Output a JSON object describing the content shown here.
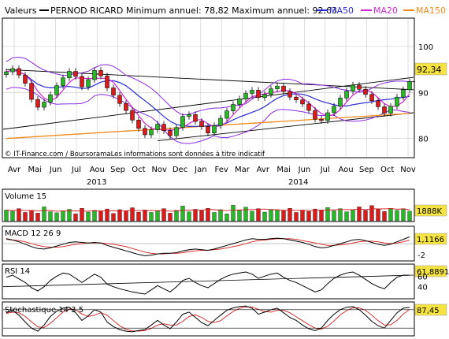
{
  "header": {
    "label_valeurs": "Valeurs",
    "security": "PERNOD RICARD",
    "stats": "Minimum annuel: 78,82 Maximum annuel: 92,63",
    "ma50": "MA50",
    "ma20": "MA20",
    "ma150": "MA150"
  },
  "colors": {
    "up": "#2bb52b",
    "down": "#d61c1c",
    "ma50": "#2b2bd6",
    "ma20": "#d22ad2",
    "ma150": "#f28c1e",
    "bollinger": "#8a2be2",
    "grid": "#c8c8c8",
    "last_price_bg": "#f5e342"
  },
  "footer_note": "© IT-Finance.com / BoursoramaLes informations sont données à titre indicatif",
  "chart_data": [
    {
      "type": "candlestick",
      "title": "PERNOD RICARD",
      "months": [
        "Avr",
        "Mai",
        "Jun",
        "Jul",
        "Aou",
        "Sep",
        "Oct",
        "Nov",
        "Dec",
        "Jan",
        "Fev",
        "Mar",
        "Avr",
        "Mai",
        "Jun",
        "Jul",
        "Aou",
        "Sep",
        "Oct",
        "Nov"
      ],
      "years": [
        "2013",
        "2014"
      ],
      "y_ticks": [
        80,
        90,
        100
      ],
      "ylim": [
        76,
        106
      ],
      "last_price": "92,34",
      "last_value": 92.34,
      "closes": [
        94.5,
        95.2,
        93.8,
        92.0,
        88.5,
        86.8,
        87.9,
        89.5,
        91.5,
        93.2,
        94.6,
        93.5,
        91.2,
        92.8,
        94.8,
        93.6,
        91.0,
        89.4,
        87.6,
        86.1,
        84.0,
        82.2,
        80.8,
        81.9,
        83.1,
        81.7,
        80.6,
        82.4,
        84.8,
        85.2,
        83.7,
        82.6,
        81.2,
        82.8,
        84.4,
        86.0,
        87.4,
        88.6,
        89.8,
        90.5,
        88.9,
        89.6,
        90.8,
        91.4,
        90.2,
        89.0,
        88.4,
        87.5,
        86.1,
        84.2,
        83.9,
        85.6,
        87.0,
        88.8,
        90.3,
        91.6,
        90.7,
        89.6,
        88.2,
        86.9,
        85.5,
        87.0,
        89.0,
        90.6,
        92.34
      ],
      "series": [
        {
          "name": "MA50"
        },
        {
          "name": "MA20"
        },
        {
          "name": "MA150"
        }
      ]
    },
    {
      "type": "bar",
      "title": "Volume 15",
      "last_value": "1888K",
      "values": [
        62,
        55,
        70,
        48,
        60,
        44,
        80,
        52,
        46,
        58,
        66,
        40,
        72,
        50,
        60,
        55,
        68,
        42,
        64,
        58,
        75,
        50,
        62,
        48,
        56,
        70,
        44,
        60,
        85,
        52,
        66,
        58,
        72,
        48,
        64,
        40,
        90,
        60,
        78,
        55,
        70,
        50,
        66,
        62,
        58,
        72,
        48,
        60,
        54,
        68,
        62,
        76,
        58,
        70,
        52,
        64,
        80,
        60,
        88,
        66,
        54,
        72,
        60,
        70,
        56
      ]
    },
    {
      "type": "line",
      "title": "MACD 12 26 9",
      "last_value": "1,1166",
      "y_ticks": [
        -2
      ],
      "values": [
        0.8,
        0.6,
        0.3,
        -0.1,
        -0.5,
        -0.8,
        -0.9,
        -0.7,
        -0.4,
        -0.1,
        0.2,
        0.3,
        0.2,
        0.1,
        0.2,
        0.1,
        -0.3,
        -0.6,
        -0.9,
        -1.2,
        -1.5,
        -1.8,
        -2.0,
        -1.9,
        -1.7,
        -1.6,
        -1.6,
        -1.5,
        -1.2,
        -1.0,
        -0.9,
        -1.0,
        -1.1,
        -0.9,
        -0.6,
        -0.3,
        0.0,
        0.3,
        0.6,
        0.8,
        0.7,
        0.7,
        0.8,
        0.9,
        0.8,
        0.6,
        0.4,
        0.2,
        -0.1,
        -0.5,
        -0.7,
        -0.6,
        -0.3,
        0.0,
        0.3,
        0.6,
        0.7,
        0.5,
        0.2,
        -0.1,
        -0.3,
        -0.1,
        0.3,
        0.7,
        1.1166
      ],
      "signal": [
        0.7,
        0.6,
        0.5,
        0.3,
        0.0,
        -0.3,
        -0.5,
        -0.6,
        -0.6,
        -0.5,
        -0.3,
        -0.1,
        0.0,
        0.1,
        0.1,
        0.1,
        0.0,
        -0.1,
        -0.3,
        -0.5,
        -0.8,
        -1.1,
        -1.4,
        -1.6,
        -1.7,
        -1.7,
        -1.6,
        -1.6,
        -1.5,
        -1.3,
        -1.2,
        -1.1,
        -1.1,
        -1.0,
        -0.9,
        -0.7,
        -0.5,
        -0.3,
        0.0,
        0.3,
        0.5,
        0.6,
        0.7,
        0.8,
        0.8,
        0.8,
        0.7,
        0.5,
        0.3,
        0.1,
        -0.1,
        -0.3,
        -0.3,
        -0.2,
        -0.1,
        0.1,
        0.3,
        0.4,
        0.4,
        0.3,
        0.1,
        0.0,
        0.1,
        0.3,
        0.6
      ]
    },
    {
      "type": "line",
      "title": "RSI 14",
      "last_value": "61,8891",
      "y_ticks": [
        40,
        60
      ],
      "ylim": [
        20,
        80
      ],
      "values": [
        58,
        62,
        55,
        48,
        38,
        32,
        40,
        52,
        60,
        66,
        64,
        56,
        48,
        56,
        64,
        58,
        45,
        40,
        36,
        33,
        30,
        28,
        26,
        34,
        42,
        36,
        30,
        40,
        52,
        56,
        48,
        42,
        38,
        46,
        54,
        60,
        64,
        66,
        68,
        64,
        56,
        60,
        64,
        66,
        58,
        52,
        48,
        42,
        36,
        30,
        34,
        46,
        56,
        62,
        66,
        68,
        62,
        54,
        46,
        40,
        36,
        48,
        58,
        62,
        61.89
      ]
    },
    {
      "type": "line",
      "title": "Stochastique 14 3 5",
      "last_value": "87,45",
      "ylim": [
        0,
        100
      ],
      "values": [
        70,
        78,
        62,
        40,
        20,
        10,
        30,
        58,
        75,
        85,
        88,
        70,
        45,
        60,
        80,
        72,
        40,
        25,
        15,
        10,
        8,
        12,
        15,
        30,
        45,
        30,
        18,
        40,
        65,
        72,
        55,
        38,
        28,
        45,
        62,
        78,
        86,
        90,
        92,
        85,
        65,
        72,
        80,
        85,
        70,
        55,
        45,
        30,
        18,
        12,
        20,
        45,
        65,
        80,
        88,
        90,
        80,
        62,
        42,
        28,
        20,
        45,
        70,
        85,
        87.45
      ],
      "signal": [
        68,
        72,
        70,
        58,
        40,
        24,
        22,
        36,
        54,
        72,
        82,
        80,
        66,
        58,
        62,
        70,
        62,
        44,
        28,
        16,
        11,
        10,
        12,
        19,
        30,
        34,
        30,
        30,
        42,
        58,
        63,
        55,
        42,
        38,
        44,
        60,
        74,
        84,
        89,
        89,
        81,
        74,
        72,
        78,
        78,
        70,
        57,
        44,
        31,
        20,
        17,
        26,
        43,
        63,
        77,
        86,
        86,
        78,
        62,
        44,
        30,
        31,
        45,
        66,
        81
      ]
    }
  ]
}
